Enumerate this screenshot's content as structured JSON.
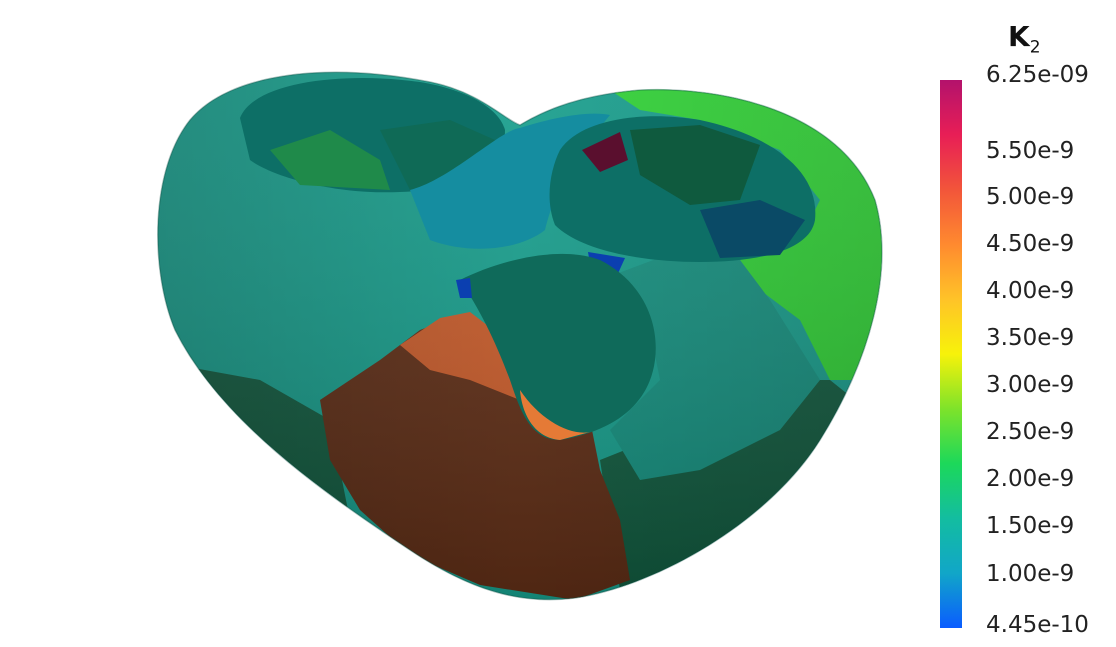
{
  "legend": {
    "title_main": "K",
    "title_sub": "2",
    "max_label": "6.25e-09",
    "min_label": "4.45e-10",
    "tick_labels": [
      "5.50e-9",
      "5.00e-9",
      "4.50e-9",
      "4.00e-9",
      "3.50e-9",
      "3.00e-9",
      "2.50e-9",
      "2.00e-9",
      "1.50e-9",
      "1.00e-9"
    ],
    "colormap": [
      "#0a5cff",
      "#11a6c8",
      "#13bda0",
      "#1cd85a",
      "#7ee32a",
      "#f7f20a",
      "#ffc328",
      "#ff8a2f",
      "#f2553a",
      "#e81e56",
      "#b3126c"
    ]
  },
  "scene": {
    "object": "heart-mesh",
    "colors": {
      "teal": "#159e8c",
      "teal_dark": "#0d6f66",
      "dark_green": "#0f5a3e",
      "green_bright": "#2ed334",
      "brown": "#5e2c14",
      "orange": "#c85a28",
      "cyan": "#158da0",
      "navy": "#0a4a66",
      "blue": "#0b3fb0",
      "maroon": "#5a0f2e"
    }
  }
}
